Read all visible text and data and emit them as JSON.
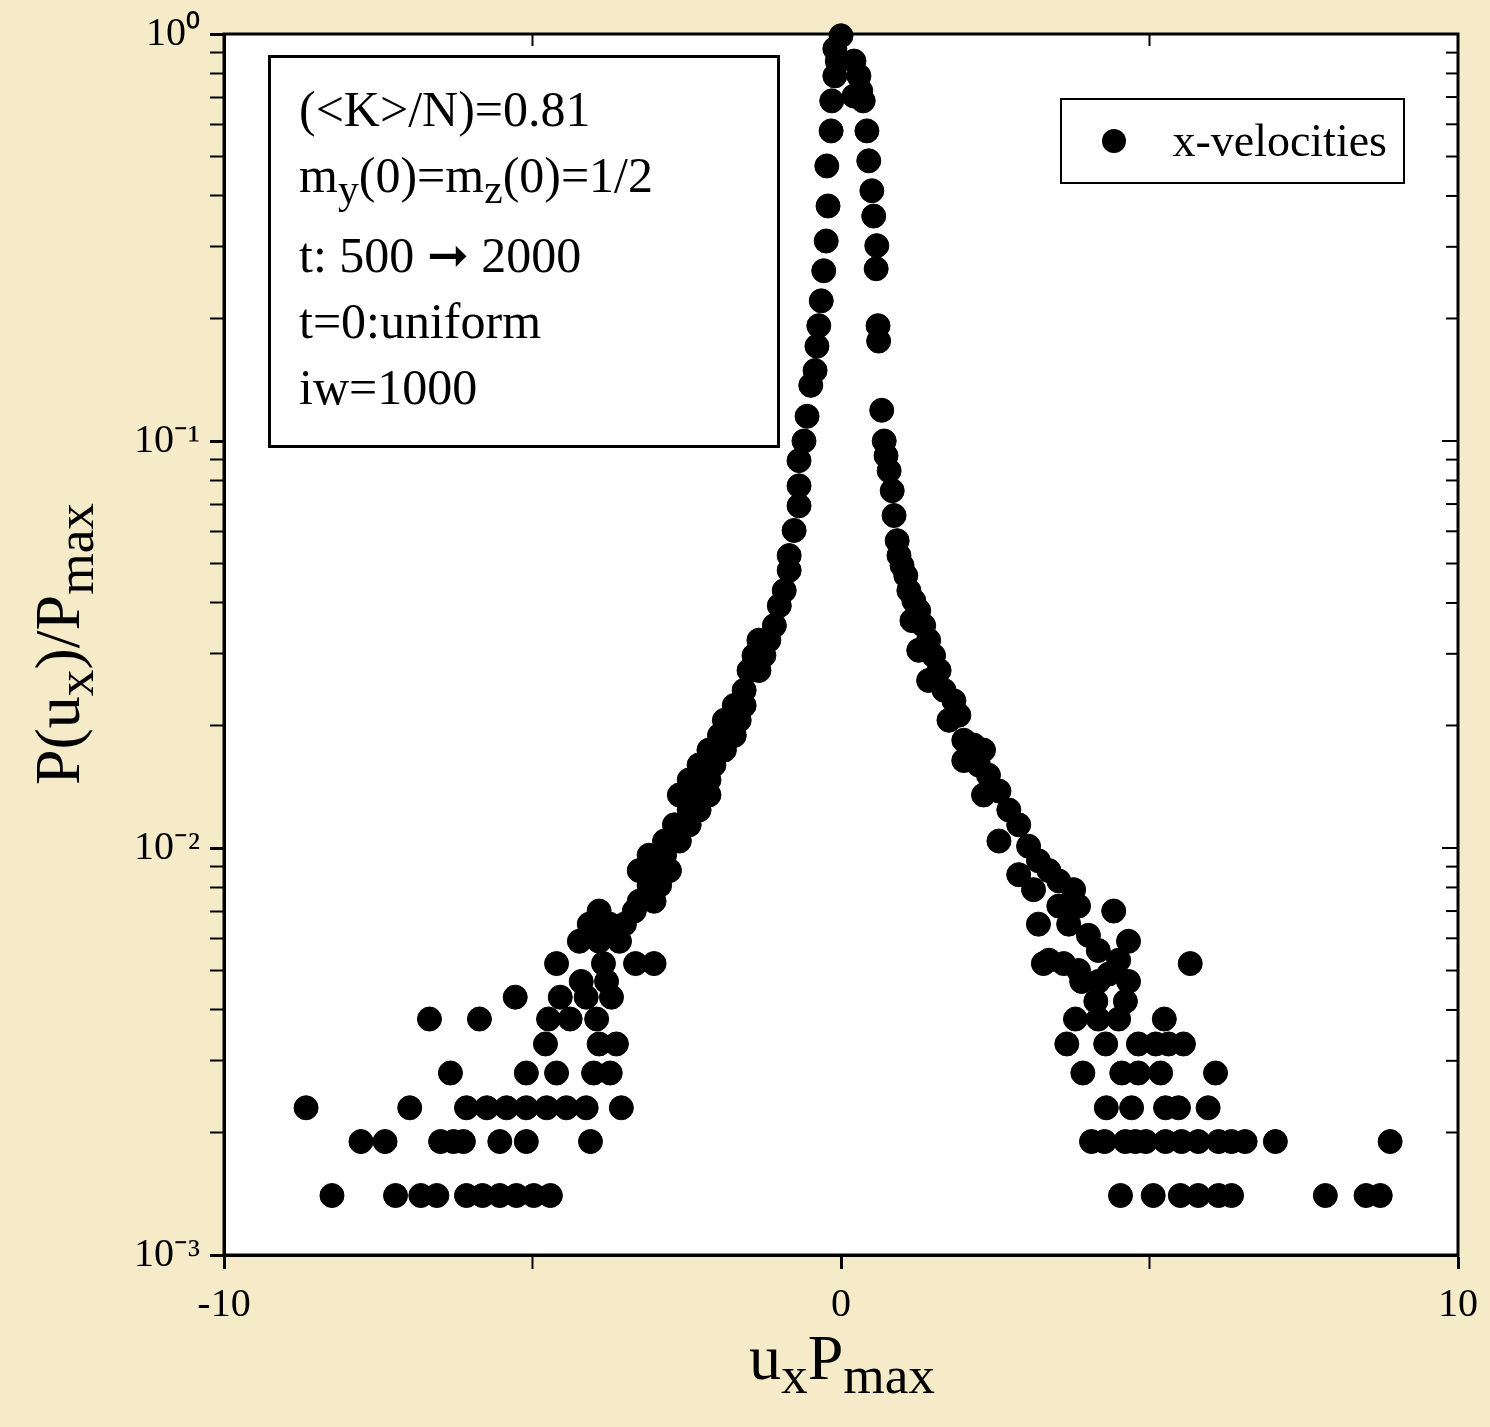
{
  "chart_data": {
    "type": "scatter",
    "xlabel": "u$_{x}$P$_{max}$",
    "ylabel": "P(u$_{x}$)/P$_{max}$",
    "annotations": [
      "(<K>/N)=0.81",
      "m$_{y}$(0)=m$_{z}$(0)=1/2",
      "t: 500 ➞ 2000",
      "t=0:uniform",
      "iw=1000"
    ],
    "xlim": [
      -10,
      10
    ],
    "xticks": [
      -10,
      {
        "value": -5,
        "label": null
      },
      0,
      {
        "value": 5,
        "label": null
      },
      10
    ],
    "ylim": [
      0.001,
      1
    ],
    "yticks": [
      {
        "value": 0.001,
        "label": "10⁻³"
      },
      {
        "value": 0.002,
        "label": null
      },
      {
        "value": 0.003,
        "label": null
      },
      {
        "value": 0.004,
        "label": null
      },
      {
        "value": 0.005,
        "label": null
      },
      {
        "value": 0.006,
        "label": null
      },
      {
        "value": 0.007,
        "label": null
      },
      {
        "value": 0.008,
        "label": null
      },
      {
        "value": 0.009,
        "label": null
      },
      {
        "value": 0.01,
        "label": "10⁻²"
      },
      {
        "value": 0.02,
        "label": null
      },
      {
        "value": 0.03,
        "label": null
      },
      {
        "value": 0.04,
        "label": null
      },
      {
        "value": 0.05,
        "label": null
      },
      {
        "value": 0.06,
        "label": null
      },
      {
        "value": 0.07,
        "label": null
      },
      {
        "value": 0.08,
        "label": null
      },
      {
        "value": 0.09,
        "label": null
      },
      {
        "value": 0.1,
        "label": "10⁻¹"
      },
      {
        "value": 0.2,
        "label": null
      },
      {
        "value": 0.3,
        "label": null
      },
      {
        "value": 0.4,
        "label": null
      },
      {
        "value": 0.5,
        "label": null
      },
      {
        "value": 0.6,
        "label": null
      },
      {
        "value": 0.7,
        "label": null
      },
      {
        "value": 0.8,
        "label": null
      },
      {
        "value": 0.9,
        "label": null
      },
      {
        "value": 1,
        "label": "10⁰"
      }
    ],
    "log": "y",
    "legend": "top right",
    "marker": "circle",
    "series": [
      {
        "name": "x-velocities",
        "color": "#000000",
        "x": [
          -8.25,
          -7.22,
          -6.81,
          -6.55,
          -6.07,
          -5.81,
          -5.53,
          -5.26,
          -4.98,
          -4.71,
          4.53,
          5.06,
          5.5,
          5.79,
          6.12,
          6.33,
          7.85,
          8.51,
          8.74,
          -7.78,
          -7.39,
          -6.49,
          -6.28,
          -6.12,
          -5.53,
          -5.1,
          -4.06,
          4.06,
          4.27,
          4.61,
          4.77,
          4.94,
          5.26,
          5.52,
          5.79,
          6.12,
          6.33,
          6.55,
          7.04,
          8.9,
          -8.67,
          -6.99,
          -6.07,
          -5.74,
          -5.42,
          -5.1,
          -4.77,
          -4.45,
          -4.13,
          -3.56,
          4.3,
          4.71,
          5.26,
          5.47,
          5.95,
          -6.33,
          -5.1,
          -4.61,
          -4.01,
          -3.74,
          3.92,
          4.55,
          4.82,
          5.18,
          6.07,
          -4.79,
          -3.92,
          -3.64,
          3.66,
          4.29,
          4.82,
          5.1,
          5.31,
          5.55,
          -6.67,
          -5.86,
          -4.74,
          -4.39,
          -3.96,
          3.8,
          4.17,
          4.5,
          5.24,
          -5.28,
          -4.55,
          -4.13,
          -3.72,
          4.13,
          4.61,
          -4.21,
          -3.8,
          3.9,
          4.17,
          4.66,
          -4.61,
          -3.85,
          -3.33,
          -3.03,
          5.66,
          3.28,
          3.61,
          -4.24,
          -3.92,
          -3.59,
          -4.08,
          -3.75,
          -3.51,
          -3.92,
          -3.35,
          -3.27,
          -3.03,
          -3.11,
          -2.94,
          -3.27,
          -2.94,
          -2.78,
          -3.11,
          -2.86,
          -2.86,
          -2.62,
          -2.7,
          -2.46,
          -2.46,
          -2.3,
          -2.62,
          -2.3,
          -2.14,
          -2.46,
          -2.14,
          -2.3,
          -2.06,
          -2.14,
          -1.89,
          -1.97,
          -1.73,
          -1.89,
          -1.65,
          -1.73,
          -1.57,
          -1.57,
          -1.49,
          -1.33,
          -1.41,
          -1.25,
          -1.33,
          -1.17,
          -1.08,
          -1.0,
          -0.92,
          -0.84,
          -0.84,
          -0.76,
          -0.68,
          -0.68,
          -0.68,
          -0.6,
          -0.55,
          -0.49,
          -0.42,
          -0.39,
          -0.36,
          -0.32,
          -0.28,
          -0.24,
          -0.21,
          -0.23,
          -0.16,
          -0.15,
          -0.1,
          -0.06,
          -0.1,
          0.0,
          0.21,
          0.29,
          0.32,
          0.21,
          0.36,
          0.42,
          0.45,
          0.5,
          0.53,
          0.58,
          0.57,
          0.6,
          0.61,
          0.66,
          0.7,
          0.73,
          0.78,
          0.83,
          0.86,
          0.91,
          0.94,
          0.99,
          1.05,
          1.1,
          1.18,
          1.26,
          1.15,
          1.34,
          1.42,
          1.26,
          1.5,
          1.59,
          1.42,
          1.67,
          1.83,
          1.75,
          1.91,
          1.99,
          2.15,
          2.31,
          1.99,
          2.23,
          2.39,
          2.56,
          2.31,
          2.72,
          2.88,
          2.56,
          3.04,
          3.2,
          2.88,
          3.37,
          3.53,
          3.77,
          3.12,
          3.53,
          3.85,
          4.42,
          3.2,
          3.69,
          4.01,
          4.66,
          4.17,
          4.5,
          3.37,
          3.85,
          4.34
        ],
        "values": [
          0.0014,
          0.0014,
          0.0014,
          0.0014,
          0.0014,
          0.0014,
          0.0014,
          0.0014,
          0.0014,
          0.0014,
          0.0014,
          0.0014,
          0.0014,
          0.0014,
          0.0014,
          0.0014,
          0.0014,
          0.0014,
          0.0014,
          0.0019,
          0.0019,
          0.0019,
          0.0019,
          0.0019,
          0.0019,
          0.0019,
          0.0019,
          0.0019,
          0.0019,
          0.0019,
          0.0019,
          0.0019,
          0.0019,
          0.0019,
          0.0019,
          0.0019,
          0.0019,
          0.0019,
          0.0019,
          0.0019,
          0.0023,
          0.0023,
          0.0023,
          0.0023,
          0.0023,
          0.0023,
          0.0023,
          0.0023,
          0.0023,
          0.0023,
          0.0023,
          0.0023,
          0.0023,
          0.0023,
          0.0023,
          0.0028,
          0.0028,
          0.0028,
          0.0028,
          0.0028,
          0.0028,
          0.0028,
          0.0028,
          0.0028,
          0.0028,
          0.0033,
          0.0033,
          0.0033,
          0.0033,
          0.0033,
          0.0033,
          0.0033,
          0.0033,
          0.0033,
          0.0038,
          0.0038,
          0.0038,
          0.0038,
          0.0038,
          0.0038,
          0.0038,
          0.0038,
          0.0038,
          0.0043,
          0.0043,
          0.0043,
          0.0043,
          0.0042,
          0.0042,
          0.0047,
          0.0047,
          0.0047,
          0.0047,
          0.0047,
          0.0052,
          0.0052,
          0.0052,
          0.0052,
          0.0052,
          0.0052,
          0.0052,
          0.0059,
          0.0059,
          0.0059,
          0.0065,
          0.0065,
          0.0065,
          0.007,
          0.007,
          0.0074,
          0.0074,
          0.0081,
          0.0081,
          0.0088,
          0.0088,
          0.0088,
          0.0096,
          0.0096,
          0.0104,
          0.0104,
          0.0114,
          0.0114,
          0.0124,
          0.0124,
          0.0135,
          0.0135,
          0.0135,
          0.0147,
          0.0147,
          0.016,
          0.016,
          0.0174,
          0.0174,
          0.0189,
          0.0189,
          0.0206,
          0.0206,
          0.0224,
          0.0224,
          0.0244,
          0.0273,
          0.0273,
          0.0297,
          0.0297,
          0.0324,
          0.0324,
          0.0352,
          0.0394,
          0.0429,
          0.0481,
          0.0523,
          0.0603,
          0.0693,
          0.0776,
          0.0895,
          0.1,
          0.115,
          0.137,
          0.149,
          0.171,
          0.192,
          0.221,
          0.262,
          0.31,
          0.378,
          0.474,
          0.578,
          0.685,
          0.789,
          0.858,
          0.92,
          0.99,
          0.858,
          0.789,
          0.725,
          0.704,
          0.685,
          0.578,
          0.488,
          0.412,
          0.357,
          0.302,
          0.265,
          0.192,
          0.176,
          0.119,
          0.1,
          0.092,
          0.0845,
          0.0755,
          0.0656,
          0.0569,
          0.0523,
          0.0494,
          0.0467,
          0.0429,
          0.0405,
          0.0383,
          0.0362,
          0.0352,
          0.0324,
          0.0306,
          0.0297,
          0.0273,
          0.0258,
          0.0244,
          0.023,
          0.0206,
          0.0212,
          0.0184,
          0.0179,
          0.0174,
          0.0164,
          0.016,
          0.0151,
          0.0138,
          0.0135,
          0.0124,
          0.0114,
          0.0104,
          0.0101,
          0.0093,
          0.0086,
          0.0088,
          0.0083,
          0.0079,
          0.0079,
          0.0072,
          0.0072,
          0.007,
          0.0065,
          0.0065,
          0.0061,
          0.0059,
          0.0056,
          0.0053,
          0.0053,
          0.005,
          0.0049
        ]
      }
    ]
  }
}
